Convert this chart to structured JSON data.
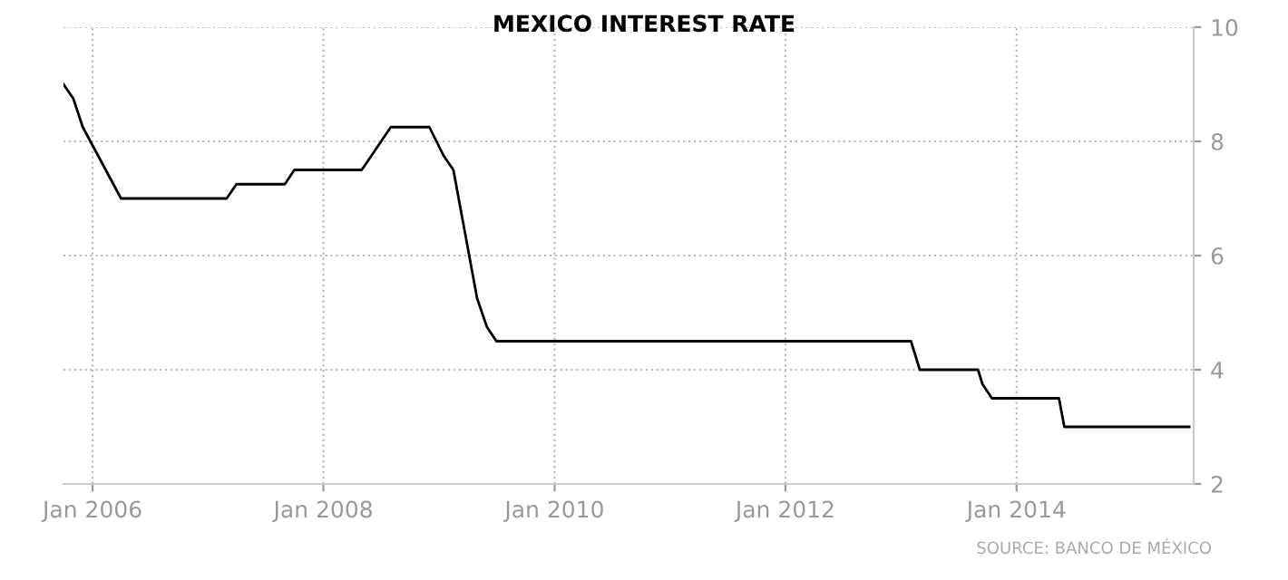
{
  "chart_data": {
    "type": "line",
    "title": "MEXICO INTEREST RATE",
    "x": [
      "2005-10-01",
      "2005-11-01",
      "2005-12-01",
      "2006-04-01",
      "2007-03-01",
      "2007-04-01",
      "2007-09-01",
      "2007-10-01",
      "2008-05-01",
      "2008-06-01",
      "2008-08-01",
      "2008-12-01",
      "2009-01-15",
      "2009-02-15",
      "2009-05-01",
      "2009-06-01",
      "2009-07-01",
      "2013-02-01",
      "2013-03-01",
      "2013-09-01",
      "2013-09-15",
      "2013-10-15",
      "2014-05-15",
      "2014-06-01",
      "2015-07-01"
    ],
    "series": [
      {
        "color": "#000000",
        "values": [
          9.0,
          8.75,
          8.25,
          7.0,
          7.0,
          7.25,
          7.25,
          7.5,
          7.5,
          7.75,
          8.25,
          8.25,
          7.75,
          7.5,
          5.25,
          4.75,
          4.5,
          4.5,
          4.0,
          4.0,
          3.75,
          3.5,
          3.5,
          3.0,
          3.0
        ]
      }
    ],
    "xlim": [
      "2005-10-01",
      "2015-07-15"
    ],
    "xticks": [
      {
        "value": "2006-01-01",
        "label": "Jan 2006"
      },
      {
        "value": "2008-01-01",
        "label": "Jan 2008"
      },
      {
        "value": "2010-01-01",
        "label": "Jan 2010"
      },
      {
        "value": "2012-01-01",
        "label": "Jan 2012"
      },
      {
        "value": "2014-01-01",
        "label": "Jan 2014"
      }
    ],
    "ylim": [
      2,
      10
    ],
    "yticks": [
      2,
      4,
      6,
      8,
      10
    ],
    "grid": true,
    "marker": "none",
    "line_style": "solid",
    "annotations": [
      "SOURCE: BANCO DE MÉXICO"
    ]
  }
}
